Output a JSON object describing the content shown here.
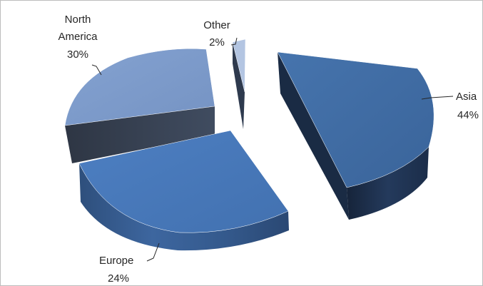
{
  "chart_data": {
    "type": "pie",
    "style": "3d-exploded",
    "slices": [
      {
        "label": "Asia",
        "value": 44,
        "percent_label": "44%",
        "color": "#3e6aa2"
      },
      {
        "label": "Europe",
        "value": 24,
        "percent_label": "24%",
        "color": "#4779bb"
      },
      {
        "label": "North America",
        "value": 30,
        "percent_label": "30%",
        "color": "#7d9bcb",
        "label_lines": [
          "North",
          "America"
        ]
      },
      {
        "label": "Other",
        "value": 2,
        "percent_label": "2%",
        "color": "#afc2e0"
      }
    ],
    "legend": "none"
  }
}
